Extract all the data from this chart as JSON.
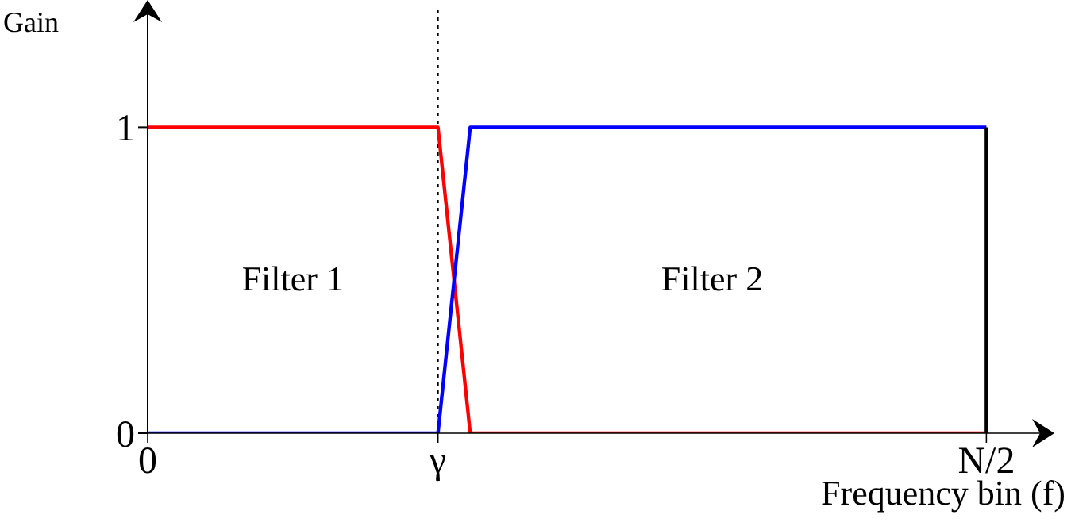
{
  "chart_data": {
    "type": "line",
    "xlabel": "Frequency bin (f)",
    "ylabel": "Gain",
    "annotations": [
      "Filter 1",
      "Filter 2"
    ],
    "categories": [
      "0",
      null,
      null,
      null,
      null,
      null,
      null,
      null,
      null,
      "γ",
      null,
      null,
      null,
      null,
      null,
      null,
      null,
      null,
      null,
      null,
      null,
      null,
      null,
      null,
      null,
      null,
      "N/2"
    ],
    "series": [
      {
        "color": "#ff0000",
        "values": [
          1,
          1,
          1,
          1,
          1,
          1,
          1,
          1,
          1,
          1,
          0,
          0,
          0,
          0,
          0,
          0,
          0,
          0,
          0,
          0,
          0,
          0,
          0,
          0,
          0,
          0,
          0
        ]
      },
      {
        "color": "#0000ff",
        "values": [
          0,
          0,
          0,
          0,
          0,
          0,
          0,
          0,
          0,
          0,
          1,
          1,
          1,
          1,
          1,
          1,
          1,
          1,
          1,
          1,
          1,
          1,
          1,
          1,
          1,
          1,
          1
        ]
      },
      {
        "color": "#000000",
        "x": [
          "N/2",
          "N/2"
        ],
        "values": [
          0,
          1
        ]
      }
    ],
    "ref_lines": [
      {
        "axis": "x",
        "value": "γ",
        "color": "#000000",
        "line_style": "dotted"
      }
    ],
    "ylim": [
      0,
      1.39
    ],
    "yticks": [
      0,
      1
    ],
    "grid": false,
    "legend": false,
    "marker": "none",
    "line_style": "solid"
  }
}
